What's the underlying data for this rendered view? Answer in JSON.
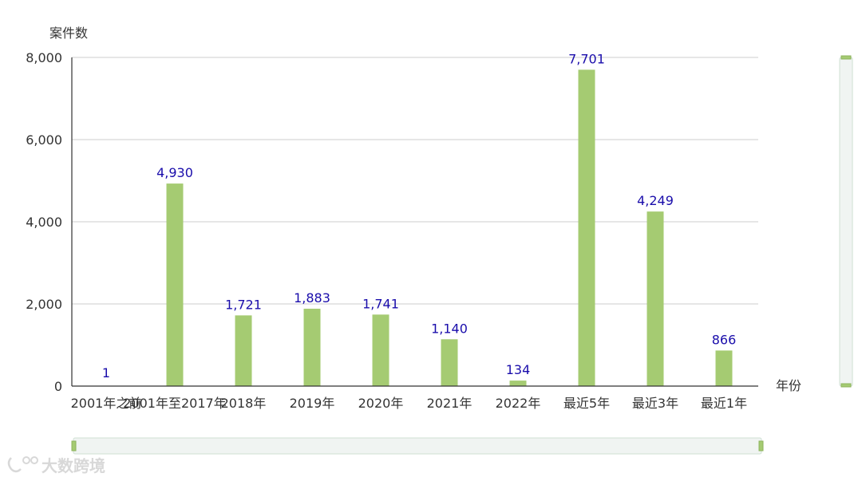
{
  "chart_data": {
    "type": "bar",
    "ylabel": "案件数",
    "xlabel": "年份",
    "categories": [
      "2001年之前",
      "2001年至2017年",
      "2018年",
      "2019年",
      "2020年",
      "2021年",
      "2022年",
      "最近5年",
      "最近3年",
      "最近1年"
    ],
    "values": [
      1,
      4930,
      1721,
      1883,
      1741,
      1140,
      134,
      7701,
      4249,
      866
    ],
    "data_labels": [
      "1",
      "4,930",
      "1,721",
      "1,883",
      "1,741",
      "1,140",
      "134",
      "7,701",
      "4,249",
      "866"
    ],
    "ylim": [
      0,
      8000
    ],
    "yticks": [
      0,
      2000,
      4000,
      6000,
      8000
    ],
    "ytick_labels": [
      "0",
      "2,000",
      "4,000",
      "6,000",
      "8,000"
    ],
    "grid": true,
    "bar_color": "#a5cb72",
    "label_color": "#1a0dab"
  },
  "watermark": {
    "text": "大数跨境",
    "icon": "logo-icon"
  },
  "sliders": {
    "horizontal": {
      "start": 0,
      "end": 1
    },
    "vertical": {
      "start": 0,
      "end": 1
    }
  }
}
